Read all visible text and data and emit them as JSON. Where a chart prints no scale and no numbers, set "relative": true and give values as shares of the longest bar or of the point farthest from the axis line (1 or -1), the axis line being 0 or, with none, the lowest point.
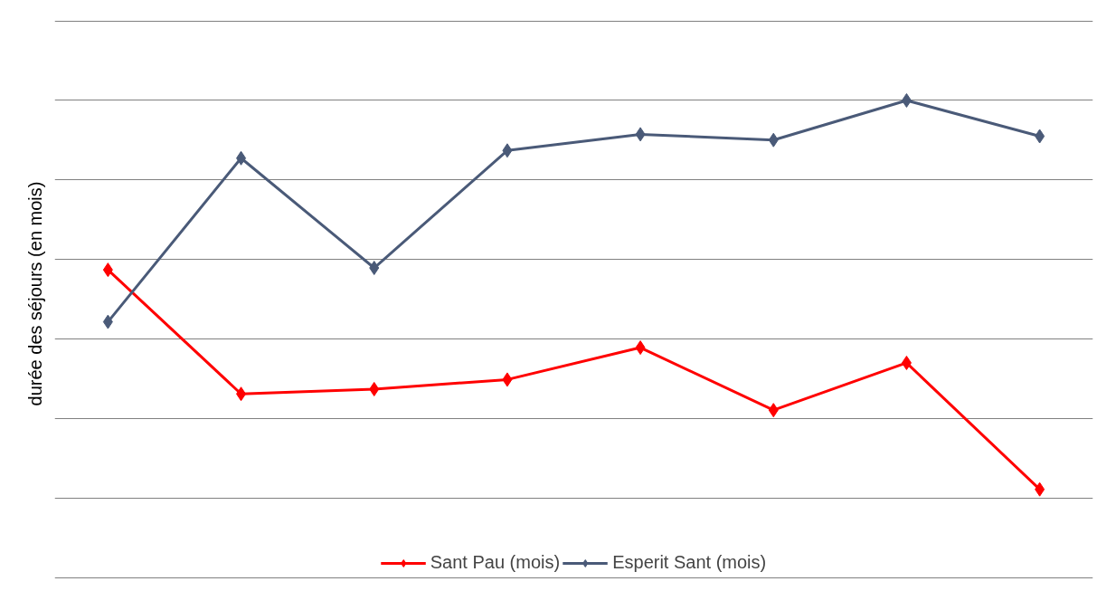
{
  "chart_data": {
    "type": "line",
    "ylabel": "durée des séjours (en mois)",
    "relative": true,
    "categories": [
      null,
      null,
      null,
      null,
      null,
      null,
      null,
      null
    ],
    "series": [
      {
        "name": "Sant Pau (mois)",
        "color": "#ff0000",
        "values": [
          0.645,
          0.385,
          0.395,
          0.415,
          0.482,
          0.351,
          0.45,
          0.185
        ]
      },
      {
        "name": "Esperit Sant (mois)",
        "color": "#4a5a78",
        "values": [
          0.536,
          0.879,
          0.649,
          0.895,
          0.929,
          0.917,
          1.0,
          0.925
        ]
      }
    ],
    "marker": "diamond",
    "line_style": "solid",
    "grid": "y",
    "legend": "bottom"
  }
}
